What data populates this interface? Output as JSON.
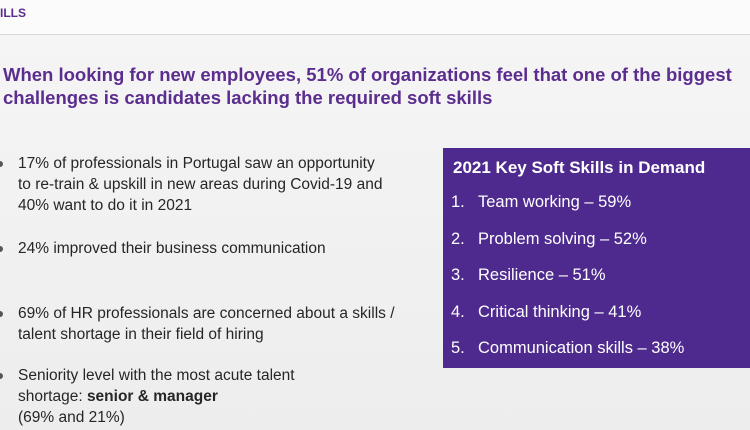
{
  "header": {
    "title": "ILLS"
  },
  "headline": "When looking for new employees, 51% of organizations feel that one of the biggest challenges is candidates lacking the required soft skills",
  "bullets": [
    {
      "text": "17% of professionals in Portugal saw an opportunity to re-train & upskill in new areas during Covid-19 and 40% want to do it in 2021"
    },
    {
      "text": "24% improved their business communication"
    },
    {
      "text": "69% of HR professionals are concerned about a skills / talent shortage in their field of hiring"
    },
    {
      "text": "Seniority level with the most acute talent shortage: ",
      "bold": "senior & manager",
      "after": "(69% and 21%)"
    }
  ],
  "panel": {
    "title": "2021 Key Soft Skills in Demand",
    "items": [
      {
        "marker": "1.",
        "text": "Team working – 59%"
      },
      {
        "marker": "2.",
        "text": "Problem solving – 52%"
      },
      {
        "marker": "3.",
        "text": "Resilience – 51%"
      },
      {
        "marker": "4.",
        "text": "Critical thinking – 41%"
      },
      {
        "marker": "5.",
        "text": "Communication skills – 38%"
      }
    ]
  }
}
